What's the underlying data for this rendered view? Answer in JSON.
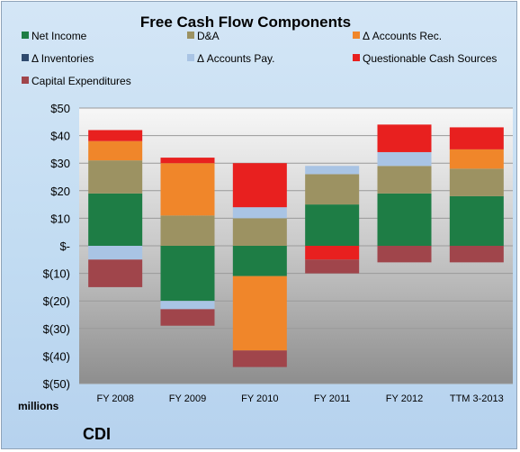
{
  "chart_data": {
    "type": "bar",
    "stacked": true,
    "title": "Free Cash Flow Components",
    "categories": [
      "FY 2008",
      "FY 2009",
      "FY 2010",
      "FY 2011",
      "FY 2012",
      "TTM 3-2013"
    ],
    "series": [
      {
        "name": "Net Income",
        "color": "#1e7d45",
        "values": [
          19,
          -20,
          -11,
          15,
          19,
          18
        ]
      },
      {
        "name": "D&A",
        "color": "#9c9262",
        "values": [
          12,
          11,
          10,
          11,
          10,
          10
        ]
      },
      {
        "name": "Δ Accounts Rec.",
        "color": "#f0862a",
        "values": [
          7,
          19,
          -27,
          0,
          0,
          7
        ]
      },
      {
        "name": "Δ Inventories",
        "color": "#2f4a6e",
        "values": [
          0,
          0,
          0,
          0,
          0,
          0
        ]
      },
      {
        "name": "Δ Accounts Pay.",
        "color": "#a9c4e4",
        "values": [
          -5,
          -3,
          4,
          3,
          5,
          0
        ]
      },
      {
        "name": "Questionable Cash Sources",
        "color": "#e8201f",
        "values": [
          4,
          2,
          16,
          -5,
          10,
          8
        ]
      },
      {
        "name": "Capital Expenditures",
        "color": "#a0454b",
        "values": [
          -10,
          -6,
          -6,
          -5,
          -6,
          -6
        ]
      }
    ],
    "ylim": [
      -50,
      50
    ],
    "yticks": [
      -50,
      -40,
      -30,
      -20,
      -10,
      0,
      10,
      20,
      30,
      40,
      50
    ],
    "ytick_labels": [
      "$(50)",
      "$(40)",
      "$(30)",
      "$(20)",
      "$(10)",
      "$-",
      "$10",
      "$20",
      "$30",
      "$40",
      "$50"
    ],
    "unit_label": "millions",
    "legend_position": "top",
    "grid": true
  },
  "company": "CDI"
}
